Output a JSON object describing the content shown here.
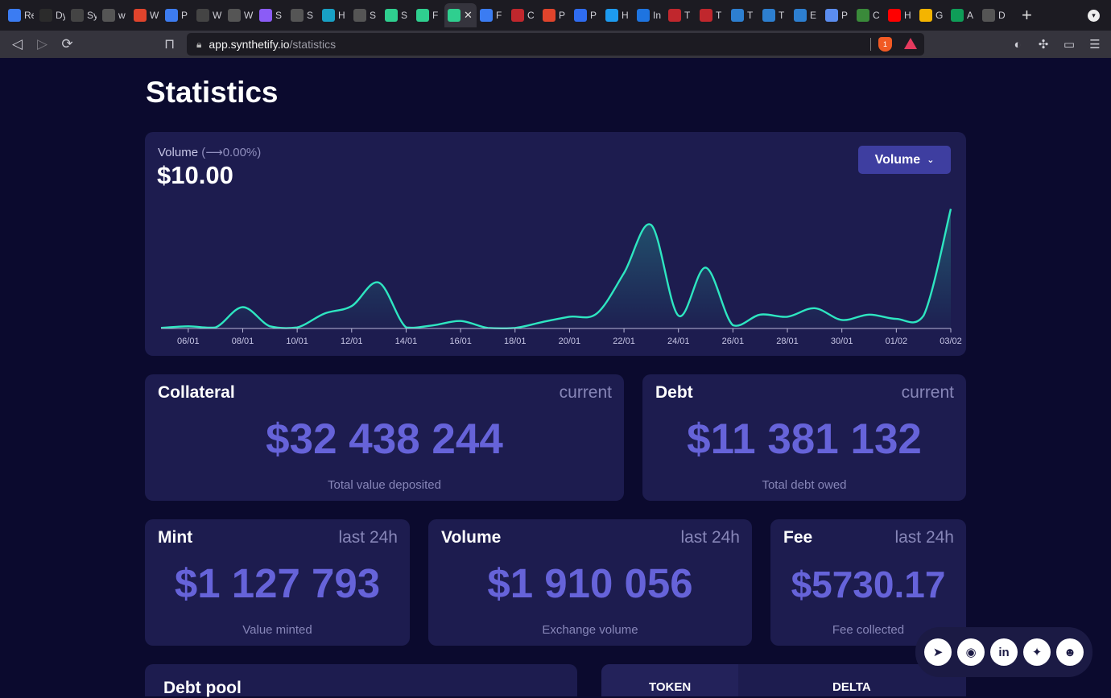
{
  "browser": {
    "tabs": [
      {
        "label": "Re",
        "color": "#3b7cf2"
      },
      {
        "label": "Dy",
        "color": "#2b2b2b"
      },
      {
        "label": "Sy",
        "color": "#444"
      },
      {
        "label": "w",
        "color": "#555"
      },
      {
        "label": "W",
        "color": "#e0442c"
      },
      {
        "label": "P",
        "color": "#3d7cf0"
      },
      {
        "label": "W",
        "color": "#444"
      },
      {
        "label": "W",
        "color": "#555"
      },
      {
        "label": "S",
        "color": "#8b5cf6"
      },
      {
        "label": "S",
        "color": "#555"
      },
      {
        "label": "H",
        "color": "#18a0c4"
      },
      {
        "label": "S",
        "color": "#555"
      },
      {
        "label": "S",
        "color": "#2fcf8f"
      },
      {
        "label": "F",
        "color": "#2fcf8f"
      },
      {
        "label": "",
        "color": "#2fcf8f"
      },
      {
        "label": "F",
        "color": "#3b7cf2"
      },
      {
        "label": "C",
        "color": "#c0272d"
      },
      {
        "label": "P",
        "color": "#e0442c"
      },
      {
        "label": "P",
        "color": "#2f6cf0"
      },
      {
        "label": "H",
        "color": "#1d9bf0"
      },
      {
        "label": "In",
        "color": "#1e74e0"
      },
      {
        "label": "T",
        "color": "#c0272d"
      },
      {
        "label": "T",
        "color": "#c0272d"
      },
      {
        "label": "T",
        "color": "#2d7fd0"
      },
      {
        "label": "T",
        "color": "#2d7fd0"
      },
      {
        "label": "E",
        "color": "#2d7fd0"
      },
      {
        "label": "P",
        "color": "#5b8def"
      },
      {
        "label": "C",
        "color": "#3a8a3a"
      },
      {
        "label": "H",
        "color": "#ff0000"
      },
      {
        "label": "G",
        "color": "#f4b400"
      },
      {
        "label": "A",
        "color": "#0f9d58"
      },
      {
        "label": "D",
        "color": "#555"
      }
    ],
    "active_tab_index": 14,
    "url_host": "app.synthetify.io",
    "url_path": "/statistics",
    "brave_count": "1"
  },
  "page": {
    "title": "Statistics"
  },
  "chart": {
    "label": "Volume",
    "change": "(⟶0.00%)",
    "value": "$10.00",
    "dropdown_label": "Volume",
    "accent": "#2ee6c1"
  },
  "chart_data": {
    "type": "area",
    "title": "Volume",
    "x": [
      "05/01",
      "06/01",
      "07/01",
      "08/01",
      "09/01",
      "10/01",
      "11/01",
      "12/01",
      "13/01",
      "14/01",
      "15/01",
      "16/01",
      "17/01",
      "18/01",
      "19/01",
      "20/01",
      "21/01",
      "22/01",
      "23/01",
      "24/01",
      "25/01",
      "26/01",
      "27/01",
      "28/01",
      "29/01",
      "30/01",
      "31/01",
      "01/02",
      "02/02",
      "03/02"
    ],
    "values": [
      0.5,
      2,
      1,
      20,
      2,
      1,
      14,
      21,
      43,
      1,
      3,
      7,
      0.5,
      0.5,
      6,
      11,
      14,
      52,
      97,
      12,
      57,
      3,
      13,
      11,
      19,
      8,
      13,
      9,
      12,
      112
    ],
    "tick_labels": [
      "06/01",
      "08/01",
      "10/01",
      "12/01",
      "14/01",
      "16/01",
      "18/01",
      "20/01",
      "22/01",
      "24/01",
      "26/01",
      "28/01",
      "30/01",
      "01/02",
      "03/02"
    ],
    "ylim": [
      0,
      120
    ],
    "xlabel": "",
    "ylabel": "",
    "grid": false,
    "series_color": "#2ee6c1"
  },
  "stats": {
    "collateral": {
      "name": "Collateral",
      "period": "current",
      "value": "$32 438 244",
      "sub": "Total value deposited"
    },
    "debt": {
      "name": "Debt",
      "period": "current",
      "value": "$11 381 132",
      "sub": "Total debt owed"
    },
    "mint": {
      "name": "Mint",
      "period": "last 24h",
      "value": "$1 127 793",
      "sub": "Value minted"
    },
    "volume": {
      "name": "Volume",
      "period": "last 24h",
      "value": "$1 910 056",
      "sub": "Exchange volume"
    },
    "fee": {
      "name": "Fee",
      "period": "last 24h",
      "value": "$5730.17",
      "sub": "Fee collected"
    }
  },
  "debt_pool": {
    "title": "Debt pool"
  },
  "table": {
    "col_token": "TOKEN",
    "col_delta": "DELTA"
  },
  "social": [
    {
      "name": "telegram",
      "glyph": "➤"
    },
    {
      "name": "github",
      "glyph": "◉"
    },
    {
      "name": "linkedin",
      "glyph": "in"
    },
    {
      "name": "twitter",
      "glyph": "✦"
    },
    {
      "name": "discord",
      "glyph": "☻"
    }
  ]
}
